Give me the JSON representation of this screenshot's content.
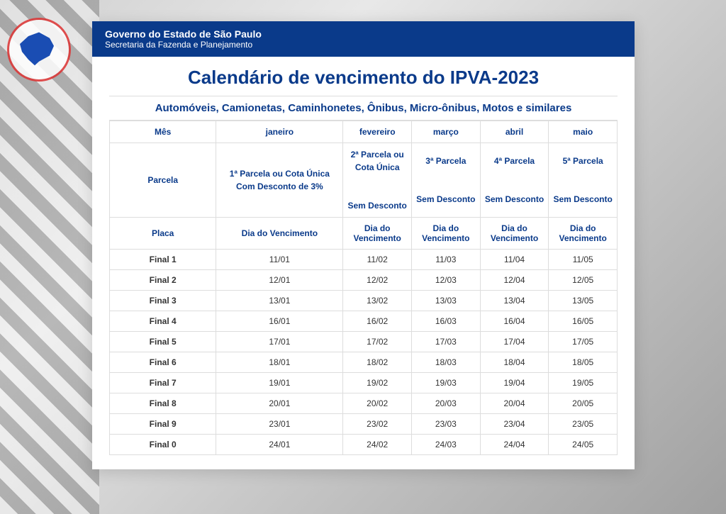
{
  "header": {
    "title": "Governo do Estado de São Paulo",
    "subtitle": "Secretaria da Fazenda e Planejamento",
    "bg_color": "#0a3a8a",
    "text_color": "#ffffff"
  },
  "main_title": "Calendário de vencimento do IPVA-2023",
  "subtitle": "Automóveis, Camionetas, Caminhonetes, Ônibus, Micro-ônibus, Motos e similares",
  "colors": {
    "accent": "#0a3a8a",
    "border": "#dddddd",
    "text": "#333333",
    "panel_bg": "#ffffff"
  },
  "table": {
    "row_mes": {
      "label": "Mês",
      "cols": [
        "janeiro",
        "fevereiro",
        "março",
        "abril",
        "maio"
      ]
    },
    "row_parcela": {
      "label": "Parcela",
      "cols": [
        "1ª Parcela ou Cota Única Com Desconto de 3%",
        "2ª Parcela ou Cota Única\n\nSem Desconto",
        "3ª Parcela\n\nSem Desconto",
        "4ª Parcela\n\nSem Desconto",
        "5ª Parcela\n\nSem Desconto"
      ]
    },
    "row_placa": {
      "label": "Placa",
      "cols": [
        "Dia do Vencimento",
        "Dia do Vencimento",
        "Dia do Vencimento",
        "Dia do Vencimento",
        "Dia do Vencimento"
      ]
    },
    "rows": [
      {
        "placa": "Final 1",
        "dates": [
          "11/01",
          "11/02",
          "11/03",
          "11/04",
          "11/05"
        ]
      },
      {
        "placa": "Final 2",
        "dates": [
          "12/01",
          "12/02",
          "12/03",
          "12/04",
          "12/05"
        ]
      },
      {
        "placa": "Final 3",
        "dates": [
          "13/01",
          "13/02",
          "13/03",
          "13/04",
          "13/05"
        ]
      },
      {
        "placa": "Final 4",
        "dates": [
          "16/01",
          "16/02",
          "16/03",
          "16/04",
          "16/05"
        ]
      },
      {
        "placa": "Final 5",
        "dates": [
          "17/01",
          "17/02",
          "17/03",
          "17/04",
          "17/05"
        ]
      },
      {
        "placa": "Final 6",
        "dates": [
          "18/01",
          "18/02",
          "18/03",
          "18/04",
          "18/05"
        ]
      },
      {
        "placa": "Final 7",
        "dates": [
          "19/01",
          "19/02",
          "19/03",
          "19/04",
          "19/05"
        ]
      },
      {
        "placa": "Final 8",
        "dates": [
          "20/01",
          "20/02",
          "20/03",
          "20/04",
          "20/05"
        ]
      },
      {
        "placa": "Final 9",
        "dates": [
          "23/01",
          "23/02",
          "23/03",
          "23/04",
          "23/05"
        ]
      },
      {
        "placa": "Final 0",
        "dates": [
          "24/01",
          "24/02",
          "24/03",
          "24/04",
          "24/05"
        ]
      }
    ]
  }
}
